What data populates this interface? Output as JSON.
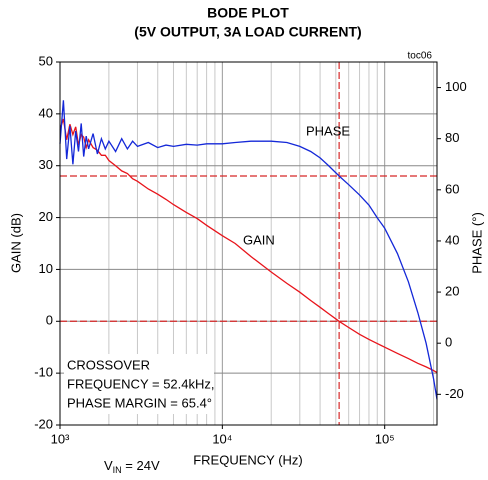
{
  "chart_data": {
    "type": "line",
    "title": "BODE PLOT",
    "subtitle": "(5V OUTPUT, 3A LOAD CURRENT)",
    "figure_id": "toc06",
    "x_label": "FREQUENCY (Hz)",
    "y_label": "GAIN (dB)",
    "y2_label": "PHASE (°)",
    "x_log": true,
    "grid": true,
    "xlim": [
      1000,
      210000
    ],
    "xticks": [
      {
        "value": 1000,
        "label": "10³"
      },
      {
        "value": 10000,
        "label": "10⁴"
      },
      {
        "value": 100000,
        "label": "10⁵"
      }
    ],
    "xminorticks": [
      2000,
      3000,
      4000,
      5000,
      6000,
      7000,
      8000,
      9000,
      20000,
      30000,
      40000,
      50000,
      60000,
      70000,
      80000,
      90000,
      200000
    ],
    "ylim": [
      -20,
      50
    ],
    "yticks": [
      -20,
      -10,
      0,
      10,
      20,
      30,
      40,
      50
    ],
    "y2lim": [
      -32,
      110
    ],
    "y2ticks": [
      -20,
      0,
      20,
      40,
      60,
      80,
      100
    ],
    "x": [
      1000,
      1050,
      1100,
      1150,
      1200,
      1250,
      1300,
      1350,
      1400,
      1450,
      1500,
      1600,
      1700,
      1800,
      1900,
      2000,
      2200,
      2400,
      2600,
      2800,
      3000,
      3500,
      4000,
      4500,
      5000,
      6000,
      7000,
      8000,
      10000,
      12000,
      15000,
      20000,
      25000,
      30000,
      35000,
      40000,
      45000,
      52400,
      60000,
      70000,
      80000,
      90000,
      100000,
      120000,
      140000,
      160000,
      180000,
      200000,
      210000
    ],
    "series": [
      {
        "name": "GAIN",
        "color": "#e8141b",
        "axis": "y",
        "values": [
          37,
          39,
          35,
          38,
          36,
          37.5,
          34,
          36,
          35.5,
          33.5,
          35,
          33.5,
          33,
          32,
          32,
          31,
          30,
          29,
          28.5,
          27.5,
          27,
          25.5,
          24.5,
          23.5,
          22.5,
          21,
          19.8,
          18.5,
          16.5,
          15,
          12.5,
          9.5,
          7.3,
          5.6,
          4,
          2.7,
          1.5,
          0,
          -1.2,
          -2.5,
          -3.5,
          -4.3,
          -5,
          -6.2,
          -7.2,
          -8.1,
          -8.8,
          -9.5,
          -9.9
        ]
      },
      {
        "name": "PHASE",
        "color": "#1428d8",
        "axis": "y2",
        "values": [
          78,
          95,
          72,
          85,
          70,
          83,
          75,
          86,
          73,
          81,
          76,
          82,
          74,
          80,
          76,
          79,
          75,
          80,
          76,
          79,
          77,
          78.5,
          76.5,
          77.5,
          77,
          77.8,
          77.5,
          78,
          78,
          78.5,
          79,
          79,
          78.5,
          77,
          75,
          72.5,
          69.5,
          65.4,
          62,
          58,
          54,
          49,
          45,
          35,
          24,
          12,
          0,
          -14,
          -22
        ]
      }
    ],
    "reference_lines": [
      {
        "axis": "x",
        "value": 52400,
        "color": "#d62828"
      },
      {
        "axis": "y2",
        "value": 65.4,
        "color": "#d62828"
      },
      {
        "axis": "y",
        "value": 0,
        "color": "#d62828"
      }
    ],
    "annotation": [
      "CROSSOVER",
      "FREQUENCY = 52.4kHz,",
      "PHASE MARGIN = 65.4°"
    ],
    "note": [
      "V",
      "IN",
      " = 24V"
    ]
  }
}
